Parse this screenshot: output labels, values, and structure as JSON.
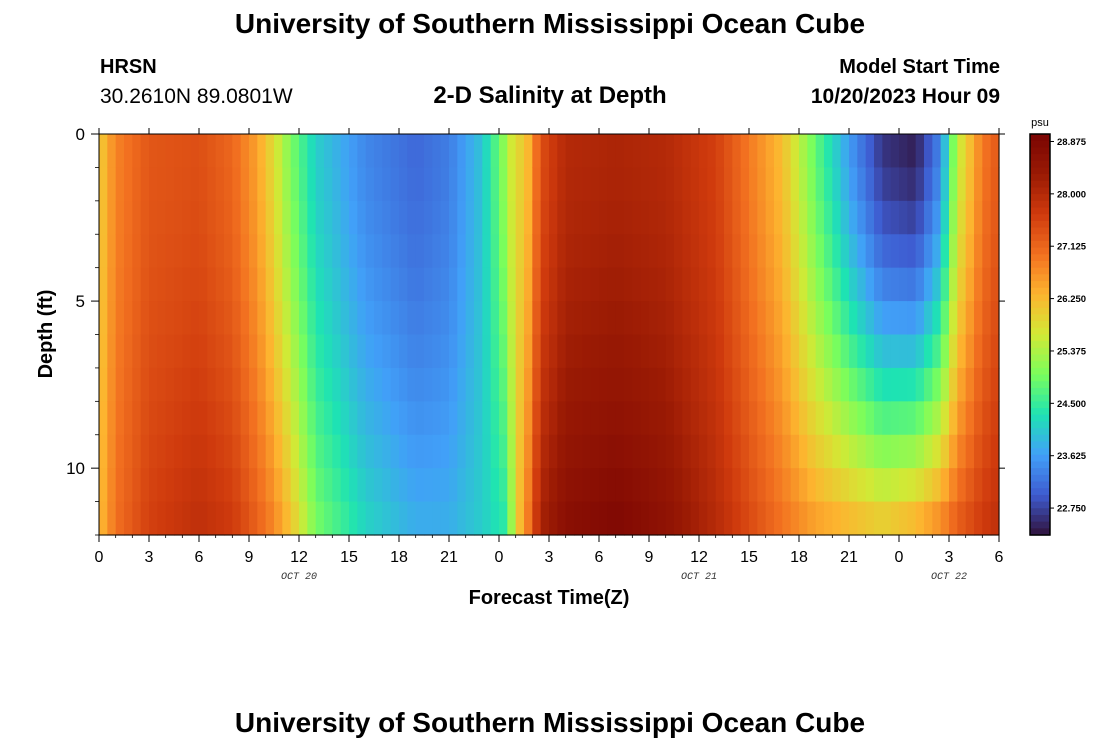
{
  "header": {
    "title": "University of Southern Mississippi Ocean Cube",
    "station_id": "HRSN",
    "station_coords": "30.2610N  89.0801W",
    "subtitle": "2-D Salinity at Depth",
    "start_label": "Model Start Time",
    "start_value": "10/20/2023 Hour 09"
  },
  "footer": {
    "title": "University of Southern Mississippi Ocean Cube"
  },
  "colors": {
    "colormap": [
      "#30123b",
      "#3e5bd0",
      "#41a0f8",
      "#1ee3b3",
      "#7afe5c",
      "#d2e935",
      "#fdb42f",
      "#f27020",
      "#cf3a0d",
      "#9a1a04",
      "#7a0403"
    ]
  },
  "chart_data": {
    "type": "heatmap",
    "title": "2-D Salinity at Depth",
    "xlabel": "Forecast Time(Z)",
    "ylabel": "Depth (ft)",
    "x_ticks": [
      "0",
      "3",
      "6",
      "9",
      "12",
      "15",
      "18",
      "21",
      "0",
      "3",
      "6",
      "9",
      "12",
      "15",
      "18",
      "21",
      "0",
      "3",
      "6"
    ],
    "x_range_hours": [
      0,
      54
    ],
    "date_labels": [
      {
        "text": "OCT 20",
        "hour": 12
      },
      {
        "text": "OCT 21",
        "hour": 36
      },
      {
        "text": "OCT 22",
        "hour": 51
      }
    ],
    "y_ticks": [
      "0",
      "5",
      "10"
    ],
    "y_range": [
      0,
      12
    ],
    "colorbar": {
      "unit": "psu",
      "min": 22.3,
      "max": 29.0,
      "ticks": [
        "28.875",
        "28.000",
        "27.125",
        "26.250",
        "25.375",
        "24.500",
        "23.625",
        "22.750"
      ]
    },
    "series": [
      {
        "hours": [
          0,
          1,
          3,
          6,
          8,
          9.5,
          10.5,
          11.5,
          13,
          16,
          19,
          21,
          23,
          24.5,
          25,
          25.5,
          26.5,
          28,
          31,
          34,
          37,
          41,
          43,
          45,
          47,
          49,
          50.5,
          51.5,
          53,
          54
        ],
        "surface_psu": [
          26.0,
          26.8,
          27.3,
          27.4,
          27.1,
          26.5,
          25.8,
          25.0,
          24.1,
          23.4,
          23.1,
          23.3,
          24.0,
          25.3,
          26.0,
          25.9,
          27.4,
          28.0,
          28.1,
          28.0,
          27.6,
          26.2,
          24.8,
          23.6,
          22.6,
          22.4,
          23.4,
          25.5,
          26.9,
          27.3
        ],
        "bottom_psu": [
          26.2,
          27.0,
          27.6,
          27.9,
          27.7,
          27.2,
          26.8,
          26.2,
          25.0,
          24.2,
          23.8,
          23.8,
          24.1,
          24.4,
          26.0,
          26.5,
          28.2,
          28.7,
          28.9,
          28.6,
          28.0,
          27.0,
          26.6,
          26.4,
          26.2,
          26.5,
          26.9,
          27.3,
          27.7,
          27.9
        ]
      }
    ]
  }
}
